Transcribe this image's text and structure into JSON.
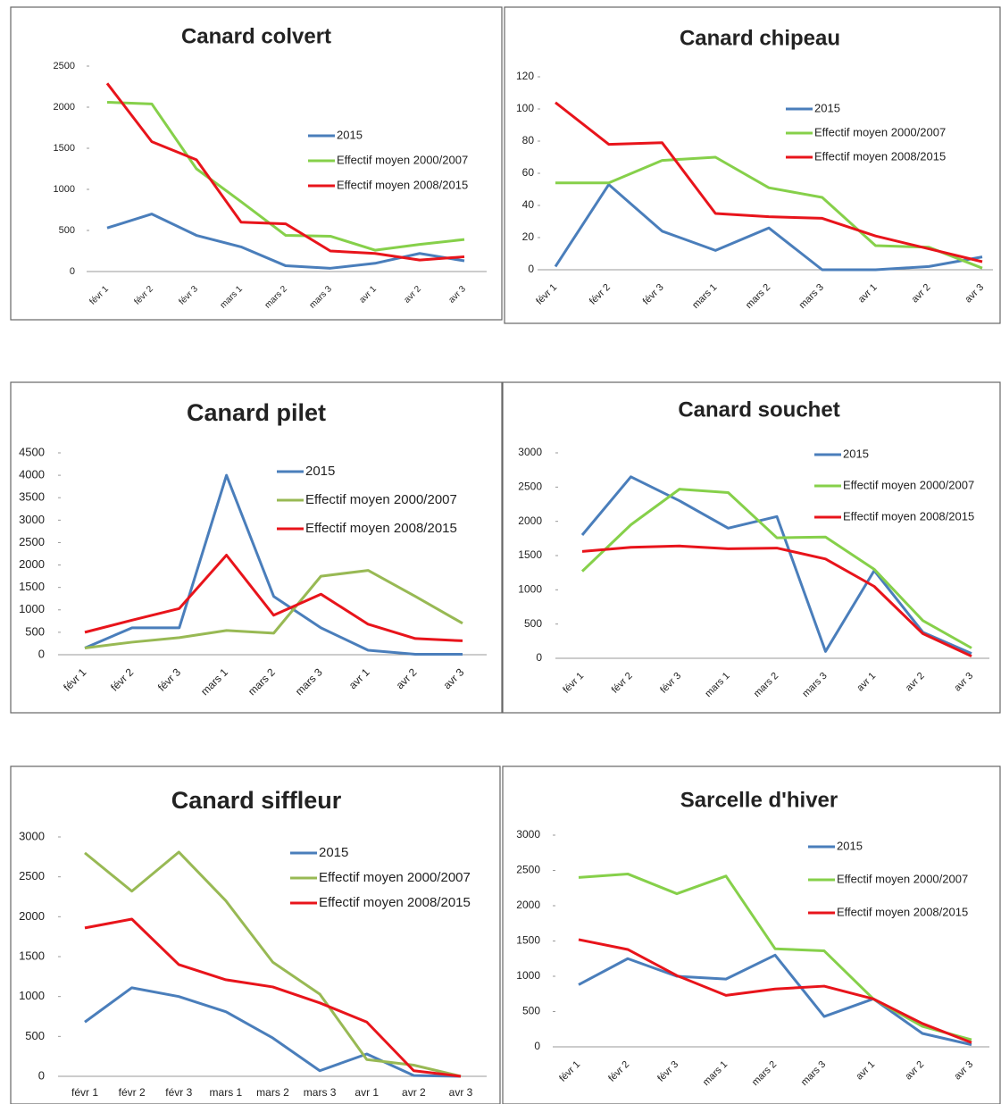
{
  "chart_data": [
    {
      "type": "line",
      "title": "Canard colvert",
      "categories": [
        "févr 1",
        "févr 2",
        "févr 3",
        "mars 1",
        "mars 2",
        "mars 3",
        "avr 1",
        "avr 2",
        "avr 3"
      ],
      "series": [
        {
          "name": "2015",
          "color": "#4a7ebb",
          "values": [
            530,
            700,
            440,
            300,
            70,
            40,
            100,
            220,
            130
          ]
        },
        {
          "name": "Effectif moyen 2000/2007",
          "color": "#86d04a",
          "values": [
            2060,
            2040,
            1250,
            850,
            440,
            430,
            260,
            330,
            390
          ]
        },
        {
          "name": "Effectif moyen 2008/2015",
          "color": "#e8141b",
          "values": [
            2290,
            1580,
            1360,
            600,
            580,
            250,
            220,
            140,
            180
          ]
        }
      ],
      "ylim": [
        0,
        2500
      ],
      "yticks": [
        0,
        500,
        1000,
        1500,
        2000,
        2500
      ]
    },
    {
      "type": "line",
      "title": "Canard chipeau",
      "categories": [
        "févr 1",
        "févr 2",
        "févr 3",
        "mars 1",
        "mars 2",
        "mars 3",
        "avr 1",
        "avr 2",
        "avr 3"
      ],
      "series": [
        {
          "name": "2015",
          "color": "#4a7ebb",
          "values": [
            2,
            53,
            24,
            12,
            26,
            0,
            0,
            2,
            8
          ]
        },
        {
          "name": "Effectif moyen 2000/2007",
          "color": "#86d04a",
          "values": [
            54,
            54,
            68,
            70,
            51,
            45,
            15,
            14,
            1
          ]
        },
        {
          "name": "Effectif moyen 2008/2015",
          "color": "#e8141b",
          "values": [
            104,
            78,
            79,
            35,
            33,
            32,
            21,
            13,
            5
          ]
        }
      ],
      "ylim": [
        0,
        120
      ],
      "yticks": [
        0,
        20,
        40,
        60,
        80,
        100,
        120
      ]
    },
    {
      "type": "line",
      "title": "Canard pilet",
      "categories": [
        "févr 1",
        "févr 2",
        "févr 3",
        "mars 1",
        "mars 2",
        "mars 3",
        "avr 1",
        "avr 2",
        "avr 3"
      ],
      "series": [
        {
          "name": "2015",
          "color": "#4a7ebb",
          "values": [
            150,
            600,
            600,
            4000,
            1300,
            600,
            100,
            10,
            10
          ]
        },
        {
          "name": "Effectif moyen 2000/2007",
          "color": "#98b954",
          "values": [
            150,
            280,
            380,
            540,
            480,
            1750,
            1880,
            1300,
            700
          ]
        },
        {
          "name": "Effectif moyen 2008/2015",
          "color": "#e8141b",
          "values": [
            500,
            770,
            1030,
            2220,
            880,
            1350,
            680,
            360,
            310
          ]
        }
      ],
      "ylim": [
        0,
        4500
      ],
      "yticks": [
        0,
        500,
        1000,
        1500,
        2000,
        2500,
        3000,
        3500,
        4000,
        4500
      ]
    },
    {
      "type": "line",
      "title": "Canard souchet",
      "categories": [
        "févr 1",
        "févr 2",
        "févr 3",
        "mars 1",
        "mars 2",
        "mars 3",
        "avr 1",
        "avr 2",
        "avr 3"
      ],
      "series": [
        {
          "name": "2015",
          "color": "#4a7ebb",
          "values": [
            1800,
            2650,
            2300,
            1900,
            2070,
            100,
            1280,
            380,
            70
          ]
        },
        {
          "name": "Effectif moyen 2000/2007",
          "color": "#86d04a",
          "values": [
            1270,
            1950,
            2470,
            2420,
            1760,
            1770,
            1300,
            550,
            150
          ]
        },
        {
          "name": "Effectif moyen 2008/2015",
          "color": "#e8141b",
          "values": [
            1560,
            1620,
            1640,
            1600,
            1610,
            1450,
            1050,
            360,
            30
          ]
        }
      ],
      "ylim": [
        0,
        3000
      ],
      "yticks": [
        0,
        500,
        1000,
        1500,
        2000,
        2500,
        3000
      ]
    },
    {
      "type": "line",
      "title": "Canard siffleur",
      "categories": [
        "févr 1",
        "févr 2",
        "févr 3",
        "mars 1",
        "mars 2",
        "mars 3",
        "avr 1",
        "avr 2",
        "avr 3"
      ],
      "series": [
        {
          "name": "2015",
          "color": "#4a7ebb",
          "values": [
            680,
            1110,
            1000,
            810,
            480,
            70,
            280,
            10,
            0
          ]
        },
        {
          "name": "Effectif moyen 2000/2007",
          "color": "#98b954",
          "values": [
            2800,
            2320,
            2810,
            2200,
            1430,
            1030,
            210,
            140,
            0
          ]
        },
        {
          "name": "Effectif moyen 2008/2015",
          "color": "#e8141b",
          "values": [
            1860,
            1970,
            1400,
            1210,
            1120,
            920,
            680,
            70,
            0
          ]
        }
      ],
      "ylim": [
        0,
        3000
      ],
      "yticks": [
        0,
        500,
        1000,
        1500,
        2000,
        2500,
        3000
      ]
    },
    {
      "type": "line",
      "title": "Sarcelle d'hiver",
      "categories": [
        "févr 1",
        "févr 2",
        "févr 3",
        "mars 1",
        "mars 2",
        "mars 3",
        "avr 1",
        "avr 2",
        "avr 3"
      ],
      "series": [
        {
          "name": "2015",
          "color": "#4a7ebb",
          "values": [
            880,
            1250,
            1000,
            960,
            1300,
            430,
            680,
            190,
            30
          ]
        },
        {
          "name": "Effectif moyen 2000/2007",
          "color": "#86d04a",
          "values": [
            2400,
            2450,
            2170,
            2420,
            1390,
            1360,
            680,
            290,
            100
          ]
        },
        {
          "name": "Effectif moyen 2008/2015",
          "color": "#e8141b",
          "values": [
            1520,
            1380,
            1010,
            730,
            820,
            860,
            680,
            330,
            60
          ]
        }
      ],
      "ylim": [
        0,
        3000
      ],
      "yticks": [
        0,
        500,
        1000,
        1500,
        2000,
        2500,
        3000
      ]
    }
  ]
}
